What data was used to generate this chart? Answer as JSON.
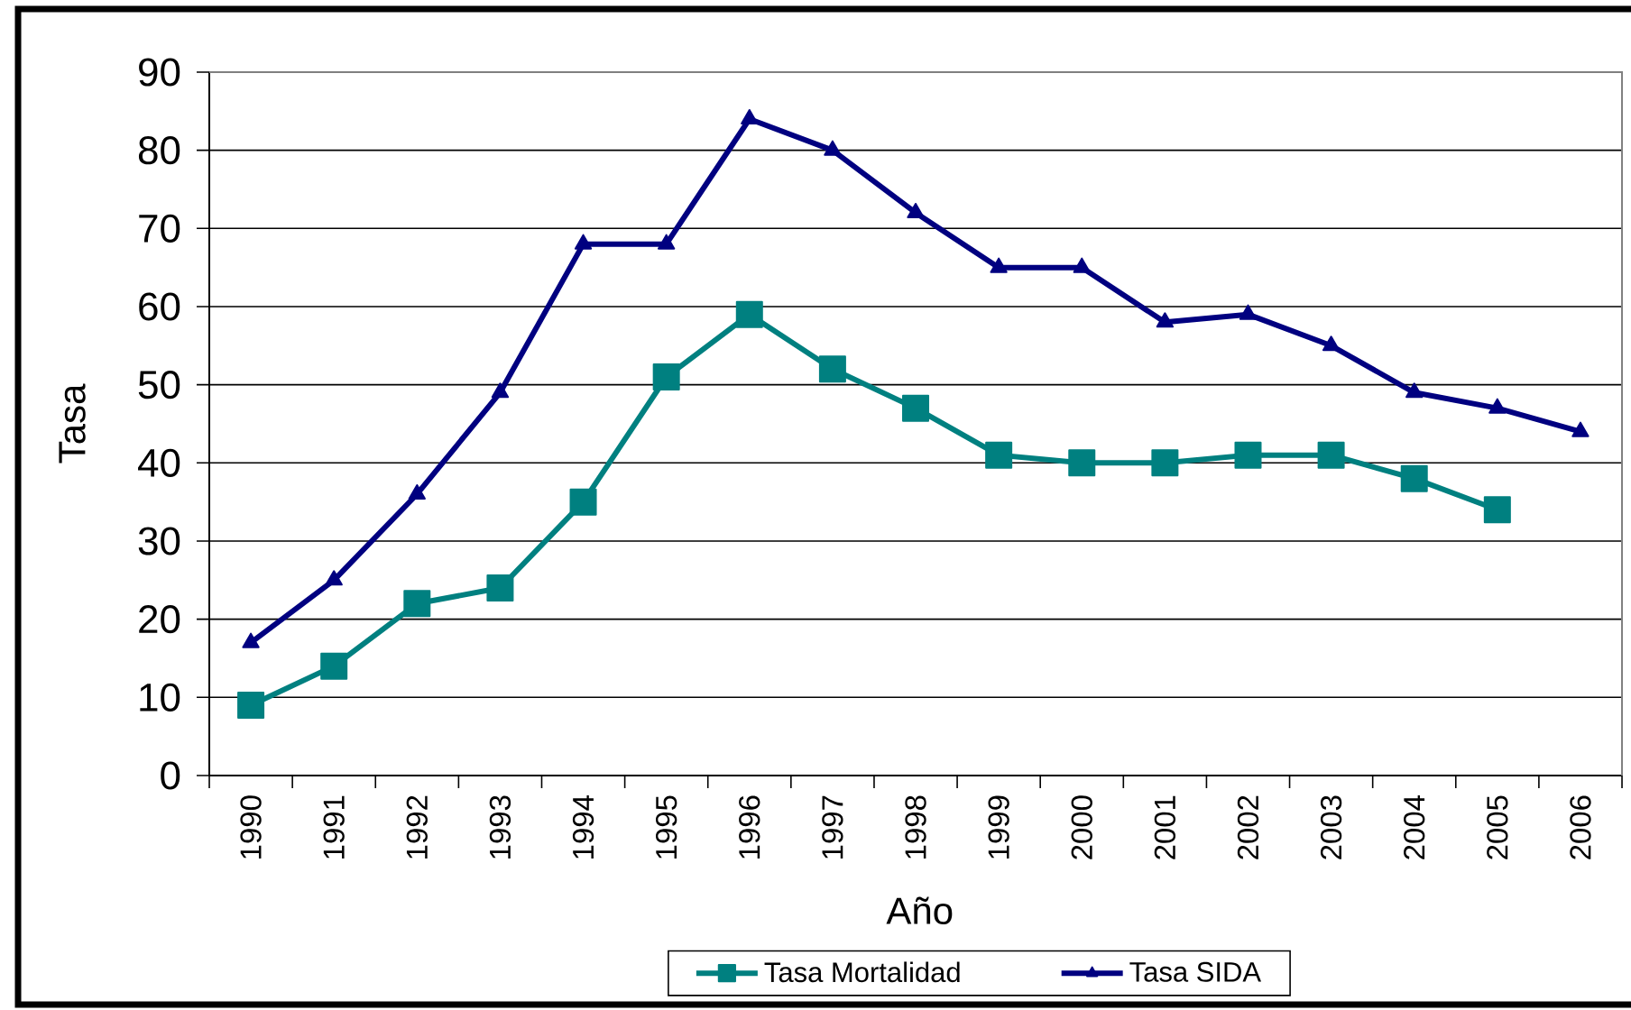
{
  "chart_data": {
    "type": "line",
    "categories": [
      "1990",
      "1991",
      "1992",
      "1993",
      "1994",
      "1995",
      "1996",
      "1997",
      "1998",
      "1999",
      "2000",
      "2001",
      "2002",
      "2003",
      "2004",
      "2005",
      "2006"
    ],
    "xlabel": "Año",
    "ylabel": "Tasa",
    "ylim": [
      0,
      90
    ],
    "yticks": [
      0,
      10,
      20,
      30,
      40,
      50,
      60,
      70,
      80,
      90
    ],
    "grid": "y",
    "legend": "bottom",
    "series": [
      {
        "name": "Tasa Mortalidad",
        "color": "#008080",
        "marker": "square",
        "values": [
          9,
          14,
          22,
          24,
          35,
          51,
          59,
          52,
          47,
          41,
          40,
          40,
          41,
          41,
          38,
          34,
          null
        ]
      },
      {
        "name": "Tasa SIDA",
        "color": "#000080",
        "marker": "triangle",
        "values": [
          17,
          25,
          36,
          49,
          68,
          68,
          84,
          80,
          72,
          65,
          65,
          58,
          59,
          55,
          49,
          47,
          44
        ]
      }
    ]
  }
}
